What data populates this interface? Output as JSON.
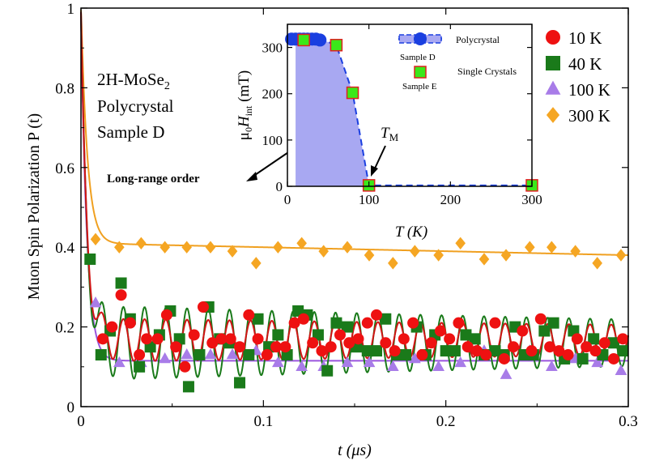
{
  "chart_data": [
    {
      "type": "scatter",
      "title": "",
      "xlabel": "t (μs)",
      "ylabel": "Muon Spin Polarization P (t)",
      "xlim": [
        0,
        0.3
      ],
      "ylim": [
        0,
        1
      ],
      "xticks": [
        "0",
        "0.1",
        "0.2",
        "0.3"
      ],
      "yticks": [
        "0",
        "0.2",
        "0.4",
        "0.6",
        "0.8",
        "1"
      ],
      "annotation": {
        "line1": "2H-MoSe",
        "sub": "2",
        "line2": "Polycrystal",
        "line3": "Sample D"
      },
      "arrow_label": "Long-range order",
      "legend": [
        {
          "name": "10 K",
          "marker": "circle",
          "color": "#ee1111"
        },
        {
          "name": "40 K",
          "marker": "square",
          "color": "#1a7a1a"
        },
        {
          "name": "100 K",
          "marker": "triangle",
          "color": "#a87ce8"
        },
        {
          "name": "300 K",
          "marker": "diamond",
          "color": "#f5a623"
        }
      ],
      "series": [
        {
          "name": "10 K",
          "color": "#ee1111",
          "fit_color": "#d01414",
          "fit": {
            "baseline": 0.167,
            "amp": 0.055,
            "freq_per_us": 86,
            "damp": 1.2
          },
          "x": [
            0.012,
            0.017,
            0.022,
            0.027,
            0.032,
            0.036,
            0.042,
            0.047,
            0.052,
            0.057,
            0.062,
            0.067,
            0.072,
            0.077,
            0.082,
            0.087,
            0.092,
            0.097,
            0.102,
            0.107,
            0.112,
            0.117,
            0.122,
            0.127,
            0.132,
            0.137,
            0.142,
            0.147,
            0.152,
            0.157,
            0.162,
            0.167,
            0.172,
            0.177,
            0.182,
            0.187,
            0.192,
            0.197,
            0.202,
            0.207,
            0.212,
            0.217,
            0.222,
            0.227,
            0.232,
            0.237,
            0.242,
            0.247,
            0.252,
            0.257,
            0.262,
            0.267,
            0.272,
            0.277,
            0.282,
            0.287,
            0.292,
            0.297
          ],
          "y": [
            0.17,
            0.2,
            0.28,
            0.21,
            0.13,
            0.17,
            0.17,
            0.23,
            0.15,
            0.1,
            0.18,
            0.25,
            0.16,
            0.17,
            0.17,
            0.15,
            0.23,
            0.17,
            0.13,
            0.15,
            0.15,
            0.21,
            0.22,
            0.16,
            0.14,
            0.15,
            0.18,
            0.16,
            0.17,
            0.21,
            0.23,
            0.16,
            0.14,
            0.17,
            0.21,
            0.13,
            0.16,
            0.19,
            0.17,
            0.21,
            0.15,
            0.14,
            0.13,
            0.21,
            0.12,
            0.15,
            0.19,
            0.14,
            0.22,
            0.15,
            0.14,
            0.13,
            0.17,
            0.15,
            0.14,
            0.16,
            0.12,
            0.17
          ]
        },
        {
          "name": "40 K",
          "color": "#1a7a1a",
          "fit_color": "#1a7a1a",
          "fit": {
            "baseline": 0.16,
            "amp": 0.095,
            "freq_per_us": 86,
            "damp": 1.6
          },
          "x": [
            0.005,
            0.011,
            0.016,
            0.022,
            0.027,
            0.032,
            0.038,
            0.043,
            0.049,
            0.054,
            0.059,
            0.065,
            0.07,
            0.076,
            0.081,
            0.087,
            0.092,
            0.097,
            0.103,
            0.108,
            0.113,
            0.119,
            0.124,
            0.13,
            0.135,
            0.14,
            0.146,
            0.151,
            0.157,
            0.162,
            0.167,
            0.173,
            0.178,
            0.184,
            0.189,
            0.194,
            0.2,
            0.205,
            0.211,
            0.216,
            0.221,
            0.227,
            0.232,
            0.238,
            0.243,
            0.248,
            0.254,
            0.259,
            0.265,
            0.27,
            0.275,
            0.281,
            0.286,
            0.292,
            0.297
          ],
          "y": [
            0.37,
            0.13,
            0.19,
            0.31,
            0.22,
            0.1,
            0.15,
            0.18,
            0.24,
            0.17,
            0.05,
            0.13,
            0.25,
            0.17,
            0.16,
            0.06,
            0.13,
            0.22,
            0.15,
            0.18,
            0.13,
            0.24,
            0.23,
            0.18,
            0.09,
            0.21,
            0.2,
            0.15,
            0.14,
            0.14,
            0.22,
            0.13,
            0.13,
            0.2,
            0.13,
            0.18,
            0.14,
            0.14,
            0.18,
            0.17,
            0.13,
            0.14,
            0.13,
            0.2,
            0.13,
            0.13,
            0.19,
            0.21,
            0.12,
            0.19,
            0.12,
            0.17,
            0.13,
            0.16,
            0.14
          ]
        },
        {
          "name": "100 K",
          "color": "#a87ce8",
          "fit_color": "#9a55dd",
          "fit": {
            "baseline": 0.115,
            "amp": 0.0,
            "freq_per_us": 0,
            "damp": 0
          },
          "x": [
            0.008,
            0.021,
            0.033,
            0.046,
            0.058,
            0.071,
            0.083,
            0.096,
            0.108,
            0.121,
            0.133,
            0.146,
            0.158,
            0.171,
            0.183,
            0.196,
            0.208,
            0.221,
            0.233,
            0.246,
            0.258,
            0.271,
            0.283,
            0.296
          ],
          "y": [
            0.26,
            0.11,
            0.11,
            0.12,
            0.13,
            0.13,
            0.13,
            0.14,
            0.11,
            0.1,
            0.1,
            0.11,
            0.11,
            0.1,
            0.12,
            0.1,
            0.11,
            0.14,
            0.08,
            0.14,
            0.1,
            0.12,
            0.11,
            0.09
          ]
        },
        {
          "name": "300 K",
          "color": "#f5a623",
          "fit_color": "#f0a020",
          "fit": {
            "baseline": 0.38,
            "amp": 0.0,
            "freq_per_us": 0,
            "damp": 0
          },
          "x": [
            0.008,
            0.021,
            0.033,
            0.046,
            0.058,
            0.071,
            0.083,
            0.096,
            0.108,
            0.121,
            0.133,
            0.146,
            0.158,
            0.171,
            0.183,
            0.196,
            0.208,
            0.221,
            0.233,
            0.246,
            0.258,
            0.271,
            0.283,
            0.296
          ],
          "y": [
            0.42,
            0.4,
            0.41,
            0.4,
            0.4,
            0.4,
            0.39,
            0.36,
            0.4,
            0.41,
            0.39,
            0.4,
            0.38,
            0.36,
            0.39,
            0.38,
            0.41,
            0.37,
            0.38,
            0.4,
            0.4,
            0.39,
            0.36,
            0.38
          ]
        }
      ]
    },
    {
      "type": "scatter",
      "title": "",
      "xlabel": "T (K)",
      "ylabel_main": "μ",
      "ylabel_sub0": "0",
      "ylabel_mid": "H",
      "ylabel_subint": "int",
      "ylabel_tail": " (mT)",
      "xlim": [
        0,
        300
      ],
      "ylim": [
        0,
        350
      ],
      "xticks": [
        "0",
        "100",
        "200",
        "300"
      ],
      "yticks": [
        "0",
        "100",
        "200",
        "300"
      ],
      "tm_label": "T",
      "tm_sub": "M",
      "legend": [
        {
          "name": "Polycrystal",
          "sample": "Sample D",
          "marker": "circle",
          "color": "#1a3fe0"
        },
        {
          "name": "Single Crystals",
          "sample": "Sample E",
          "marker": "square",
          "color": "#3be81a"
        }
      ],
      "series": [
        {
          "name": "Sample D",
          "marker": "circle",
          "color": "#1a3fe0",
          "x": [
            5,
            10,
            15,
            20,
            25,
            30,
            35,
            40
          ],
          "y": [
            318,
            318,
            318,
            318,
            318,
            318,
            318,
            316
          ]
        },
        {
          "name": "Sample E",
          "marker": "square",
          "color": "#3be81a",
          "x": [
            20,
            60,
            80,
            100,
            300
          ],
          "y": [
            316,
            305,
            202,
            2,
            2
          ]
        }
      ],
      "dashed_line": {
        "x": [
          0,
          40,
          60,
          80,
          100,
          300
        ],
        "y": [
          318,
          318,
          305,
          202,
          2,
          2
        ]
      },
      "shaded_region": {
        "x": [
          10,
          40,
          60,
          80,
          100
        ],
        "y": [
          318,
          318,
          305,
          202,
          0
        ]
      }
    }
  ]
}
